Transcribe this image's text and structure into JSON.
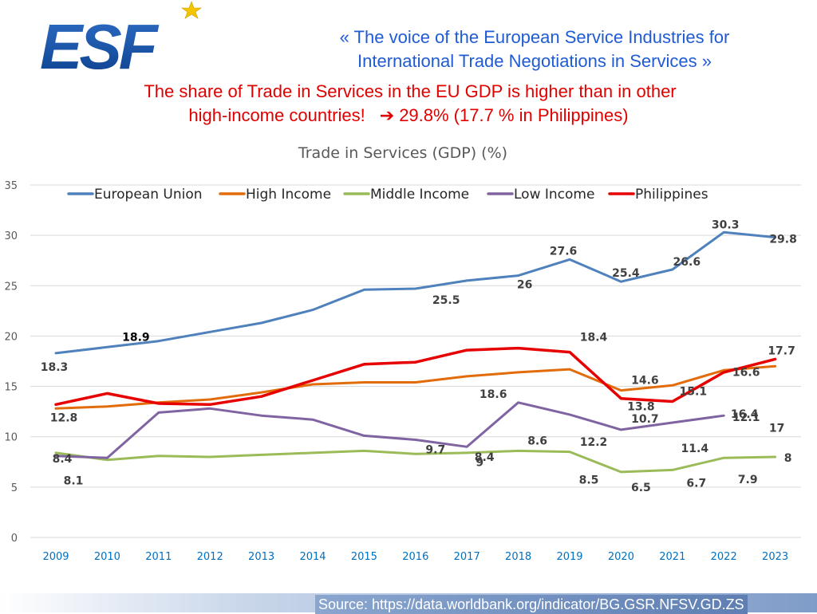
{
  "logo": {
    "text": "ESF"
  },
  "tagline": {
    "line1": "«  The voice of the European Service Industries for",
    "line2": "International Trade Negotiations in Services  »"
  },
  "headline": {
    "line1": "The share of Trade in Services in the EU GDP is higher than in other",
    "line2_prefix": "high-income countries!",
    "arrow": "➔",
    "line2_suffix": "29.8% (17.7 % in Philippines)"
  },
  "source": "Source: https://data.worldbank.org/indicator/BG.GSR.NFSV.GD.ZS",
  "colors": {
    "eu": "#4f81bd",
    "high": "#e36c0a",
    "middle": "#9bbb59",
    "low": "#8064a2",
    "philippines": "#e60000",
    "tagline": "#1f5bd4",
    "headline": "#e00000",
    "axis_text": "#595959",
    "year_text": "#0070c0"
  },
  "chart_data": {
    "type": "line",
    "title": "Trade in Services (GDP) (%)",
    "x": [
      "2009",
      "2010",
      "2011",
      "2012",
      "2013",
      "2014",
      "2015",
      "2016",
      "2017",
      "2018",
      "2019",
      "2020",
      "2021",
      "2022",
      "2023"
    ],
    "ylim": [
      0,
      35
    ],
    "yticks": [
      0,
      5,
      10,
      15,
      20,
      25,
      30,
      35
    ],
    "grid": true,
    "legend": "top",
    "series": [
      {
        "name": "European Union",
        "key": "eu",
        "values": [
          18.3,
          18.9,
          19.5,
          20.4,
          21.3,
          22.6,
          24.6,
          24.7,
          25.5,
          26,
          27.6,
          25.4,
          26.6,
          30.3,
          29.8
        ]
      },
      {
        "name": "High Income",
        "key": "high",
        "values": [
          12.8,
          13.0,
          13.4,
          13.7,
          14.4,
          15.2,
          15.4,
          15.4,
          16.0,
          16.4,
          16.7,
          14.6,
          15.1,
          16.6,
          17
        ]
      },
      {
        "name": "Middle Income",
        "key": "middle",
        "values": [
          8.4,
          7.7,
          8.1,
          8.0,
          8.2,
          8.4,
          8.6,
          8.3,
          8.4,
          8.6,
          8.5,
          6.5,
          6.7,
          7.9,
          8
        ]
      },
      {
        "name": "Low Income",
        "key": "low",
        "values": [
          8.1,
          7.9,
          12.4,
          12.8,
          12.1,
          11.7,
          10.1,
          9.7,
          9,
          13.4,
          12.2,
          10.7,
          11.4,
          12.1,
          null
        ]
      },
      {
        "name": "Philippines",
        "key": "philippines",
        "values": [
          13.2,
          14.3,
          13.3,
          13.2,
          14.0,
          15.6,
          17.2,
          17.4,
          18.6,
          18.8,
          18.4,
          13.8,
          13.5,
          16.4,
          17.7
        ]
      }
    ],
    "data_labels": [
      {
        "text": "18.3",
        "year": "2009",
        "value": 18.3,
        "bold": true
      },
      {
        "text": "18.9",
        "year": "2010",
        "value": 18.9,
        "bold": true,
        "black": true
      },
      {
        "text": "25.5",
        "year": "2017",
        "value": 25.5,
        "bold": true
      },
      {
        "text": "26",
        "year": "2018",
        "value": 26,
        "bold": true
      },
      {
        "text": "27.6",
        "year": "2019",
        "value": 27.6,
        "bold": true
      },
      {
        "text": "25.4",
        "year": "2020",
        "value": 25.4,
        "bold": true
      },
      {
        "text": "26.6",
        "year": "2021",
        "value": 26.6,
        "bold": true
      },
      {
        "text": "30.3",
        "year": "2022",
        "value": 30.3,
        "bold": true
      },
      {
        "text": "29.8",
        "year": "2023",
        "value": 29.8,
        "bold": true
      },
      {
        "text": "12.8",
        "year": "2009",
        "value": 12.8,
        "bold": true
      },
      {
        "text": "8.4",
        "year": "2009",
        "value": 8.4,
        "bold": true
      },
      {
        "text": "8.1",
        "year": "2009",
        "value": 8.1,
        "bold": true
      },
      {
        "text": "9.7",
        "year": "2016",
        "value": 9.7,
        "bold": true
      },
      {
        "text": "8.4",
        "year": "2017",
        "value": 8.4,
        "bold": true
      },
      {
        "text": "9",
        "year": "2017",
        "value": 9,
        "bold": true
      },
      {
        "text": "18.6",
        "year": "2017",
        "value": 18.6,
        "bold": true
      },
      {
        "text": "8.6",
        "year": "2018",
        "value": 8.6,
        "bold": true
      },
      {
        "text": "18.4",
        "year": "2019",
        "value": 18.4,
        "bold": true
      },
      {
        "text": "12.2",
        "year": "2019",
        "value": 12.2,
        "bold": true
      },
      {
        "text": "8.5",
        "year": "2019",
        "value": 8.5,
        "bold": true
      },
      {
        "text": "13.8",
        "year": "2020",
        "value": 13.8,
        "bold": true
      },
      {
        "text": "14.6",
        "year": "2020",
        "value": 14.6,
        "bold": true
      },
      {
        "text": "10.7",
        "year": "2020",
        "value": 10.7,
        "bold": true
      },
      {
        "text": "6.5",
        "year": "2020",
        "value": 6.5,
        "bold": true
      },
      {
        "text": "15.1",
        "year": "2021",
        "value": 15.1,
        "bold": true
      },
      {
        "text": "11.4",
        "year": "2021",
        "value": 11.4,
        "bold": true
      },
      {
        "text": "6.7",
        "year": "2021",
        "value": 6.7,
        "bold": true
      },
      {
        "text": "16.6",
        "year": "2022",
        "value": 16.6,
        "bold": true
      },
      {
        "text": "16.4",
        "year": "2022",
        "value": 16.4,
        "bold": true
      },
      {
        "text": "12.1",
        "year": "2022",
        "value": 12.1,
        "bold": true
      },
      {
        "text": "7.9",
        "year": "2022",
        "value": 7.9,
        "bold": true
      },
      {
        "text": "17.7",
        "year": "2023",
        "value": 17.7,
        "bold": true
      },
      {
        "text": "17",
        "year": "2023",
        "value": 17,
        "bold": true
      },
      {
        "text": "8",
        "year": "2023",
        "value": 8,
        "bold": true
      }
    ]
  }
}
